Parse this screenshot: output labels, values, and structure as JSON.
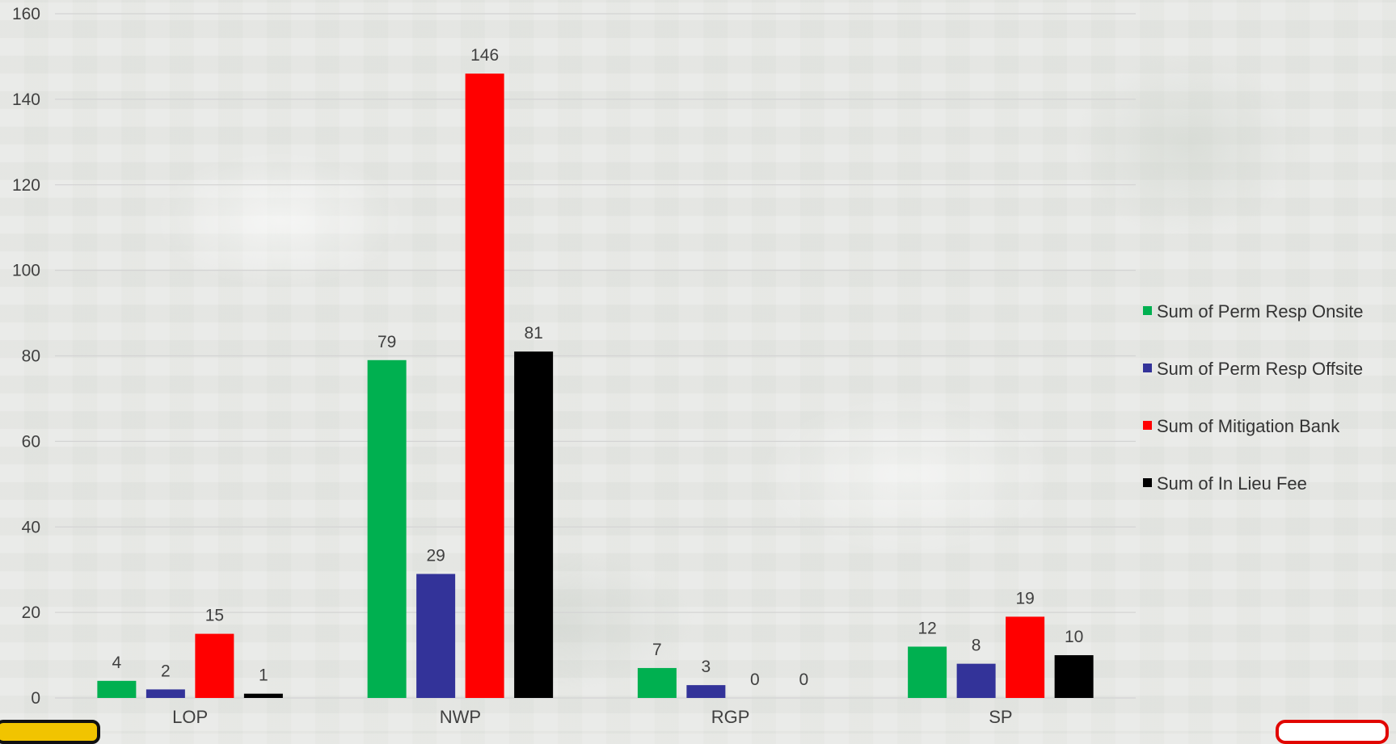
{
  "colors": {
    "series": [
      "#00b050",
      "#333399",
      "#ff0000",
      "#000000"
    ],
    "grid": "#d4d4d4",
    "text": "#404040"
  },
  "chart_data": {
    "type": "bar",
    "title": "",
    "xlabel": "",
    "ylabel": "",
    "categories": [
      "LOP",
      "NWP",
      "RGP",
      "SP"
    ],
    "series": [
      {
        "name": "Sum of Perm Resp Onsite",
        "values": [
          4,
          79,
          7,
          12
        ]
      },
      {
        "name": "Sum of Perm Resp Offsite",
        "values": [
          2,
          29,
          3,
          8
        ]
      },
      {
        "name": "Sum of Mitigation Bank",
        "values": [
          15,
          146,
          0,
          19
        ]
      },
      {
        "name": "Sum of In Lieu Fee",
        "values": [
          1,
          81,
          0,
          10
        ]
      }
    ],
    "ylim": [
      0,
      160
    ],
    "yticks": [
      0,
      20,
      40,
      60,
      80,
      100,
      120,
      140,
      160
    ],
    "grid": true,
    "legend_position": "right"
  }
}
